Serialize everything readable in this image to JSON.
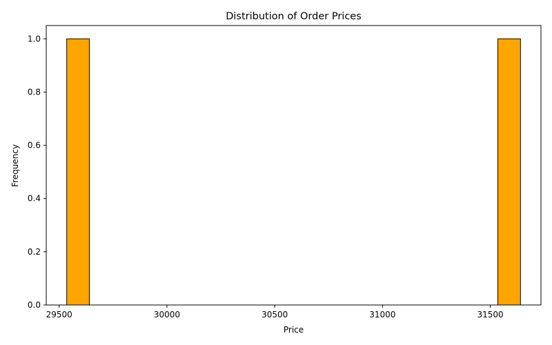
{
  "chart_data": {
    "type": "bar",
    "title": "Distribution of Order Prices",
    "xlabel": "Price",
    "ylabel": "Frequency",
    "bins": [
      {
        "x0": 29535,
        "x1": 29640,
        "value": 1
      },
      {
        "x0": 31535,
        "x1": 31640,
        "value": 1
      }
    ],
    "xlim": [
      29440,
      31735
    ],
    "ylim": [
      0,
      1.05
    ],
    "xticks": [
      29500,
      30000,
      30500,
      31000,
      31500
    ],
    "xtick_labels": [
      "29500",
      "30000",
      "30500",
      "31000",
      "31500"
    ],
    "yticks": [
      0,
      0.2,
      0.4,
      0.6,
      0.8,
      1.0
    ],
    "ytick_labels": [
      "0.0",
      "0.2",
      "0.4",
      "0.6",
      "0.8",
      "1.0"
    ],
    "grid": false,
    "colors": {
      "bar_fill": "#FFA500",
      "bar_edge": "#000000"
    }
  }
}
